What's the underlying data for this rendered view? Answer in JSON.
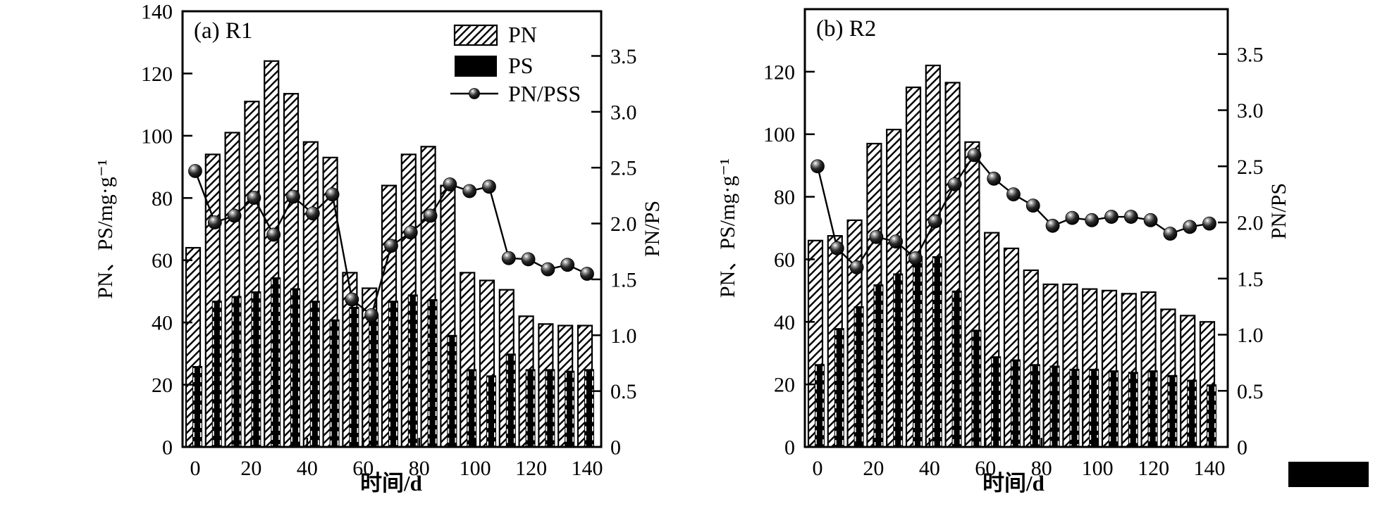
{
  "figure": {
    "background": "#ffffff",
    "ink_color": "#000000",
    "has_black_block_bottom_right": true
  },
  "chart_data": [
    {
      "type": "bar",
      "panel_label": "(a) R1",
      "xlabel": "时间/d",
      "ylabel_left": "PN、PS/mg·g⁻¹",
      "ylabel_right": "PN/PS",
      "x_days": [
        0,
        7,
        14,
        21,
        28,
        35,
        42,
        49,
        56,
        63,
        70,
        77,
        84,
        91,
        98,
        105,
        112,
        119,
        126,
        133,
        140
      ],
      "series": [
        {
          "name": "PN",
          "type": "bar",
          "style": "hatched",
          "axis": "left",
          "values": [
            64,
            94,
            101,
            111,
            124,
            113.5,
            98,
            93,
            56,
            51,
            84,
            94,
            96.5,
            84,
            56,
            53.5,
            50.5,
            42,
            39.5,
            39,
            39
          ]
        },
        {
          "name": "PS",
          "type": "bar",
          "style": "solid",
          "axis": "left",
          "values": [
            26,
            47,
            48.5,
            50,
            54.5,
            51,
            47,
            41,
            45,
            42.5,
            47,
            49,
            47.5,
            36,
            25,
            23,
            30,
            25,
            25,
            24.5,
            25
          ]
        },
        {
          "name": "PN/PSS",
          "type": "line-marker",
          "axis": "right",
          "values": [
            2.47,
            2.01,
            2.07,
            2.23,
            1.9,
            2.24,
            2.09,
            2.26,
            1.32,
            1.18,
            1.8,
            1.92,
            2.07,
            2.35,
            2.29,
            2.33,
            1.69,
            1.68,
            1.59,
            1.63,
            1.55
          ]
        }
      ],
      "axes": {
        "left": {
          "lim": [
            0,
            140
          ],
          "ticks": [
            0,
            20,
            40,
            60,
            80,
            100,
            120,
            140
          ],
          "tick_labels": [
            "0",
            "20",
            "40",
            "60",
            "80",
            "100",
            "120",
            "140"
          ]
        },
        "right": {
          "lim": [
            0,
            3.9
          ],
          "ticks": [
            0,
            0.5,
            1.0,
            1.5,
            2.0,
            2.5,
            3.0,
            3.5
          ],
          "tick_labels": [
            "0",
            "0.5",
            "1.0",
            "1.5",
            "2.0",
            "2.5",
            "3.0",
            "3.5"
          ]
        },
        "x": {
          "ticks": [
            0,
            20,
            40,
            60,
            80,
            100,
            120,
            140
          ],
          "tick_labels": [
            "0",
            "20",
            "40",
            "60",
            "80",
            "100",
            "120",
            "140"
          ]
        }
      },
      "legend": {
        "visible": true,
        "items": [
          "PN",
          "PS",
          "PN/PSS"
        ]
      },
      "grid": false
    },
    {
      "type": "bar",
      "panel_label": "(b) R2",
      "xlabel": "时间/d",
      "ylabel_left": "PN、PS/mg·g⁻¹",
      "ylabel_right": "PN/PS",
      "x_days": [
        0,
        7,
        14,
        21,
        28,
        35,
        42,
        49,
        56,
        63,
        70,
        77,
        84,
        91,
        98,
        105,
        112,
        119,
        126,
        133,
        140
      ],
      "series": [
        {
          "name": "PN",
          "type": "bar",
          "style": "hatched",
          "axis": "left",
          "values": [
            66,
            67.5,
            72.5,
            97,
            101.5,
            115,
            122,
            116.5,
            97.5,
            68.5,
            63.5,
            56.5,
            52,
            52,
            50.5,
            50,
            49,
            49.5,
            44,
            42,
            40
          ]
        },
        {
          "name": "PS",
          "type": "bar",
          "style": "solid",
          "axis": "left",
          "values": [
            26.5,
            38,
            45,
            52,
            55.5,
            61,
            61,
            50,
            37.5,
            29,
            28,
            26.5,
            26,
            25,
            25,
            24.5,
            24,
            24.5,
            23,
            21.5,
            20
          ]
        },
        {
          "name": "PN/PSS",
          "type": "line-marker",
          "axis": "right",
          "values": [
            2.5,
            1.77,
            1.6,
            1.87,
            1.83,
            1.68,
            2.01,
            2.34,
            2.6,
            2.39,
            2.25,
            2.15,
            1.97,
            2.04,
            2.02,
            2.05,
            2.05,
            2.02,
            1.9,
            1.96,
            1.99
          ]
        }
      ],
      "axes": {
        "left": {
          "lim": [
            0,
            140
          ],
          "ticks": [
            0,
            20,
            40,
            60,
            80,
            100,
            120
          ],
          "tick_labels": [
            "0",
            "20",
            "40",
            "60",
            "80",
            "100",
            "120"
          ]
        },
        "right": {
          "lim": [
            0,
            3.9
          ],
          "ticks": [
            0,
            0.5,
            1.0,
            1.5,
            2.0,
            2.5,
            3.0,
            3.5
          ],
          "tick_labels": [
            "0",
            "0.5",
            "1.0",
            "1.5",
            "2.0",
            "2.5",
            "3.0",
            "3.5"
          ]
        },
        "x": {
          "ticks": [
            0,
            20,
            40,
            60,
            80,
            100,
            120,
            140
          ],
          "tick_labels": [
            "0",
            "20",
            "40",
            "60",
            "80",
            "100",
            "120",
            "140"
          ]
        }
      },
      "legend": {
        "visible": false,
        "items": [
          "PN",
          "PS",
          "PN/PSS"
        ]
      },
      "grid": false
    }
  ]
}
